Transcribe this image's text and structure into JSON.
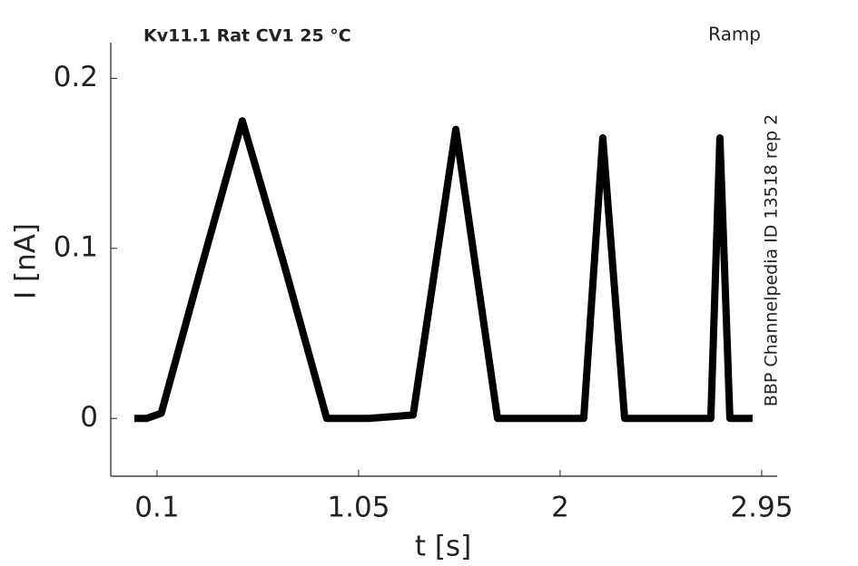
{
  "chart_data": {
    "type": "line",
    "title": "Kv11.1  Rat  CV1  25 °C",
    "subtitle": "Ramp",
    "annotation": "BBP Channelpedia ID 13518 rep 2",
    "x_label": "t [s]",
    "y_label": "I [nA]",
    "x": [
      -0.007,
      0.05,
      0.12,
      0.3,
      0.502,
      0.7,
      0.9,
      1.1,
      1.307,
      1.508,
      1.705,
      1.9,
      2.111,
      2.201,
      2.304,
      2.5,
      2.71,
      2.753,
      2.8,
      2.907
    ],
    "values": [
      0,
      0,
      0.003,
      0.085,
      0.175,
      0.09,
      0,
      0,
      0.002,
      0.17,
      0,
      0,
      0,
      0.165,
      0,
      0,
      0,
      0.165,
      0,
      0
    ],
    "color": "#000000",
    "xlim": [
      -0.118,
      3.023
    ],
    "xticks": [
      0.1,
      1.05,
      2,
      2.95
    ],
    "ylim": [
      -0.034,
      0.221
    ],
    "yticks": [
      0,
      0.1,
      0.2
    ]
  }
}
